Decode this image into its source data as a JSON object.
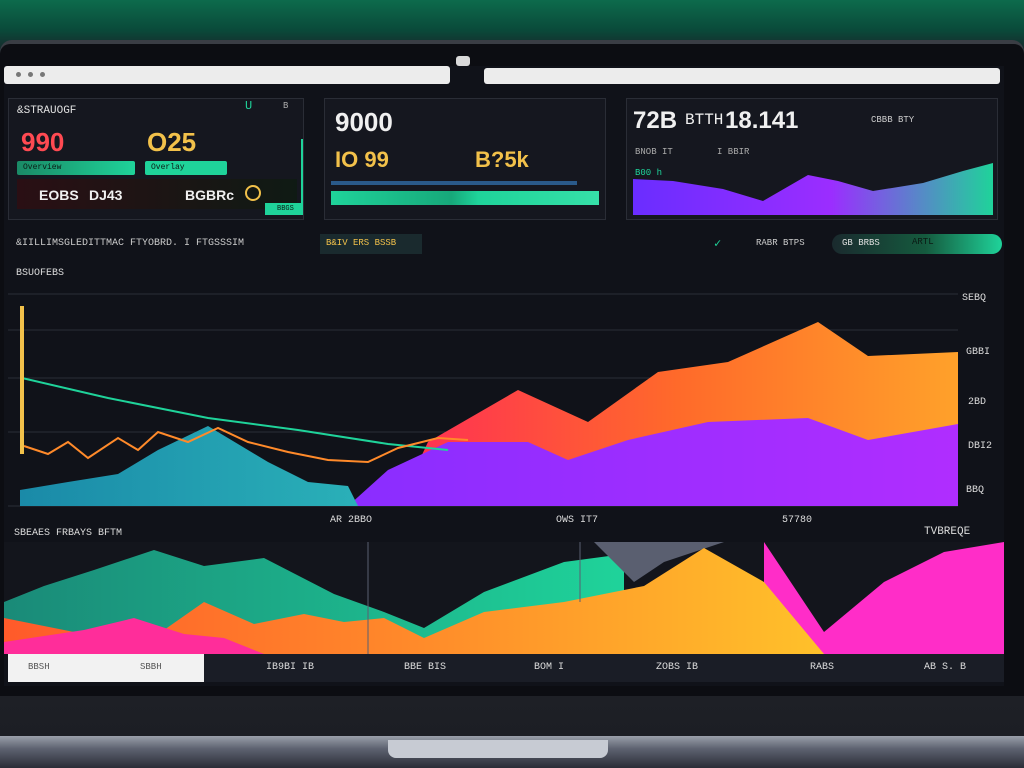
{
  "panel1": {
    "title": "&STRAUOGF",
    "icon_label_1": "U",
    "icon_label_2": "B",
    "value_left": "990",
    "value_right": "O25",
    "tag_left": "Overview",
    "tag_right": "Overlay",
    "bottom_left": "EOBS",
    "bottom_mid": "DJ43",
    "bottom_right": "BGBRc",
    "corner_label": "BBGS"
  },
  "panel2": {
    "value_top": "9000",
    "value_left": "IO 99",
    "value_right": "B?5k"
  },
  "panel3": {
    "value_a": "72B",
    "value_b": "BTTH",
    "value_c": "18.141",
    "label_right": "CBBB BTY",
    "sub_left": "BNOB IT",
    "sub_mid": "I BBIR",
    "series_label": "B00 h"
  },
  "statusbar": {
    "left": "&IILLIMSGLEDITTMAC FTYOBRD. I  FTGSSSIM",
    "chip": "B&IV ERS BSSB",
    "check_label": "✓",
    "mid_right": "RABR BTPS",
    "badge_label": "GB BRBS",
    "pill_label": "ARTL"
  },
  "main_chart": {
    "label": "BSUOFEBS",
    "y_ticks": [
      "SEBQ",
      "GBBI",
      "2BD",
      "DBI2",
      "BBQ"
    ],
    "x_ticks": [
      "AR 2BBO",
      "OWS IT7",
      "57780"
    ]
  },
  "lower_chart": {
    "label": "SBEAES FRBAYS BFTM",
    "right_label": "TVBREQE",
    "tab_left_a": "BBSH",
    "tab_left_b": "SBBH",
    "footer": [
      "IB9BI IB",
      "BBE BIS",
      "BOM I",
      "ZOBS IB",
      "RABS",
      "AB S. B"
    ]
  },
  "colors": {
    "accent_green": "#1fd39a",
    "accent_orange": "#ff8a2a",
    "accent_purple": "#9b2dff",
    "accent_red": "#ff3b4e",
    "accent_gold": "#f2c14a"
  },
  "icons": {
    "check": "check-icon",
    "camera": "camera-icon"
  }
}
